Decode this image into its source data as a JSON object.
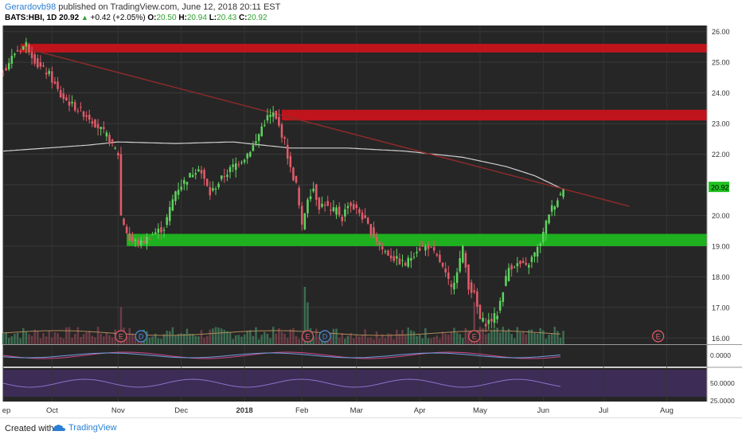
{
  "header": {
    "author": "Gerardovb98",
    "published_text": "published on TradingView.com, June 12, 2018 20:11 EST",
    "symbol": "BATS:HBI, 1D",
    "last": "20.92",
    "change": "+0.42 (+2.05%)",
    "o_label": "O:",
    "o_value": "20.50",
    "h_label": "H:",
    "h_value": "20.94",
    "l_label": "L:",
    "l_value": "20.43",
    "c_label": "C:",
    "c_value": "20.92"
  },
  "footer": {
    "created_with": "Created with",
    "brand": "TradingView"
  },
  "chart_data": {
    "type": "candlestick",
    "colors": {
      "background": "#262626",
      "up": "#5fd35f",
      "down": "#e35b6a",
      "resistance_zone": "#c0141c",
      "support_zone": "#1fb01f",
      "moving_average": "#cfcfcf",
      "trendline": "#8b2a2a",
      "last_price_tag": "#22c322"
    },
    "price_axis": {
      "min": 15.8,
      "max": 26.2,
      "ticks": [
        "26.00",
        "25.00",
        "24.00",
        "23.00",
        "22.00",
        "21.00",
        "20.00",
        "19.00",
        "18.00",
        "17.00",
        "16.00"
      ],
      "last_price_label": "20.92",
      "last_price": 20.92
    },
    "time_axis": {
      "labels": [
        "ep",
        "Oct",
        "Nov",
        "Dec",
        "2018",
        "Feb",
        "Mar",
        "Apr",
        "May",
        "Jun",
        "Jul",
        "Aug"
      ],
      "month_day_index": [
        0,
        17,
        40,
        62,
        84,
        104,
        123,
        145,
        166,
        188,
        209,
        231
      ],
      "total_days": 245
    },
    "zones": [
      {
        "name": "resistance-upper",
        "from_day": 6,
        "to_day": 245,
        "low": 25.32,
        "high": 25.6
      },
      {
        "name": "resistance-mid",
        "from_day": 97,
        "to_day": 245,
        "low": 23.1,
        "high": 23.45
      },
      {
        "name": "support",
        "from_day": 43,
        "to_day": 245,
        "low": 19.0,
        "high": 19.4
      }
    ],
    "trendline": {
      "from_day": 6,
      "from_price": 25.5,
      "to_day": 218,
      "to_price": 20.3
    },
    "moving_average": {
      "day": [
        0,
        15,
        30,
        40,
        60,
        80,
        100,
        120,
        140,
        160,
        175,
        185,
        195
      ],
      "price": [
        22.1,
        22.2,
        22.3,
        22.4,
        22.35,
        22.4,
        22.2,
        22.2,
        22.1,
        21.9,
        21.6,
        21.3,
        20.85
      ]
    },
    "price_series": {
      "day": [
        0,
        4,
        8,
        12,
        16,
        20,
        24,
        30,
        36,
        40,
        41,
        44,
        48,
        52,
        56,
        60,
        64,
        68,
        72,
        76,
        80,
        84,
        88,
        90,
        92,
        94,
        96,
        98,
        100,
        102,
        104,
        106,
        108,
        110,
        112,
        114,
        116,
        118,
        120,
        124,
        128,
        132,
        136,
        140,
        144,
        148,
        152,
        156,
        160,
        162,
        164,
        166,
        168,
        170,
        172,
        174,
        176,
        178,
        180,
        182,
        184,
        186,
        188,
        190,
        192,
        194,
        195
      ],
      "close": [
        24.7,
        25.3,
        25.6,
        24.9,
        24.6,
        23.9,
        23.6,
        23.2,
        22.6,
        22.0,
        20.0,
        19.2,
        19.1,
        19.4,
        19.6,
        20.8,
        21.2,
        21.6,
        20.7,
        21.2,
        21.6,
        21.9,
        22.4,
        22.9,
        23.2,
        23.3,
        22.9,
        22.4,
        21.5,
        21.0,
        19.6,
        20.6,
        20.9,
        20.3,
        20.4,
        20.1,
        20.2,
        19.9,
        20.4,
        20.1,
        19.5,
        18.9,
        18.6,
        18.4,
        18.9,
        19.0,
        18.5,
        17.6,
        18.9,
        17.7,
        17.4,
        16.6,
        16.5,
        16.6,
        16.8,
        17.6,
        18.3,
        18.4,
        18.4,
        18.3,
        18.6,
        18.9,
        19.4,
        20.1,
        20.4,
        20.7,
        20.92
      ]
    },
    "events": [
      {
        "label": "E",
        "day": 41,
        "color": "#e35b6a"
      },
      {
        "label": "D",
        "day": 48,
        "color": "#4a8fd9"
      },
      {
        "label": "E",
        "day": 106,
        "color": "#e35b6a"
      },
      {
        "label": "D",
        "day": 112,
        "color": "#4a8fd9"
      },
      {
        "label": "E",
        "day": 164,
        "color": "#e35b6a"
      },
      {
        "label": "E",
        "day": 228,
        "color": "#e35b6a"
      }
    ],
    "macd": {
      "ticks": [
        "0.0000"
      ]
    },
    "rsi": {
      "ticks": [
        "50.0000",
        "25.0000"
      ]
    }
  }
}
